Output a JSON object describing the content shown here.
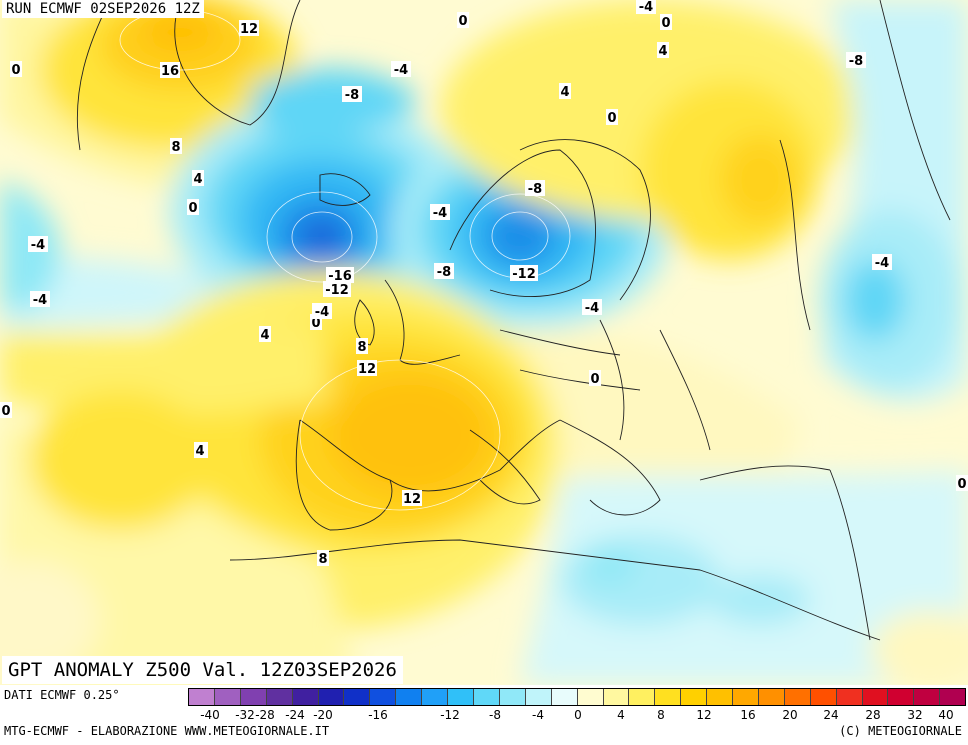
{
  "header": {
    "run_label": "RUN ECMWF 02SEP2026 12Z",
    "product_title": "GPT ANOMALY Z500 Val. 12Z03SEP2026"
  },
  "footer": {
    "data_source": "DATI ECMWF 0.25°",
    "credit": "MTG-ECMWF - ELABORAZIONE WWW.METEOGIORNALE.IT",
    "copyright": "(C) METEOGIORNALE"
  },
  "legend": {
    "ticks": [
      "-40",
      "-32",
      "-28",
      "-24",
      "-20",
      "-16",
      "-12",
      "-8",
      "-4",
      "0",
      "4",
      "8",
      "12",
      "16",
      "20",
      "24",
      "28",
      "32",
      "40"
    ],
    "colors": [
      "#c080d0",
      "#a060c0",
      "#8040b0",
      "#6030a0",
      "#4020a0",
      "#2020b0",
      "#1030c8",
      "#1050e0",
      "#1080f0",
      "#20a0f8",
      "#30c0f8",
      "#60d8f8",
      "#90e8f8",
      "#c0f4fa",
      "#e8fcfc",
      "#fffcd0",
      "#fff8a0",
      "#fff060",
      "#ffe020",
      "#ffd000",
      "#ffc000",
      "#ffa800",
      "#ff9000",
      "#ff7000",
      "#ff5000",
      "#f03020",
      "#e01020",
      "#d00030",
      "#c00040",
      "#b00050"
    ]
  },
  "map_labels": [
    "12",
    "16",
    "8",
    "4",
    "0",
    "0",
    "-4",
    "-8",
    "-4",
    "-8",
    "-16",
    "-12",
    "0",
    "-4",
    "-8",
    "-4",
    "-12",
    "-8",
    "-4",
    "0",
    "4",
    "4",
    "0",
    "-4",
    "-4",
    "0",
    "4",
    "-4",
    "0",
    "4",
    "8",
    "12",
    "12",
    "8",
    "4",
    "0",
    "0"
  ]
}
